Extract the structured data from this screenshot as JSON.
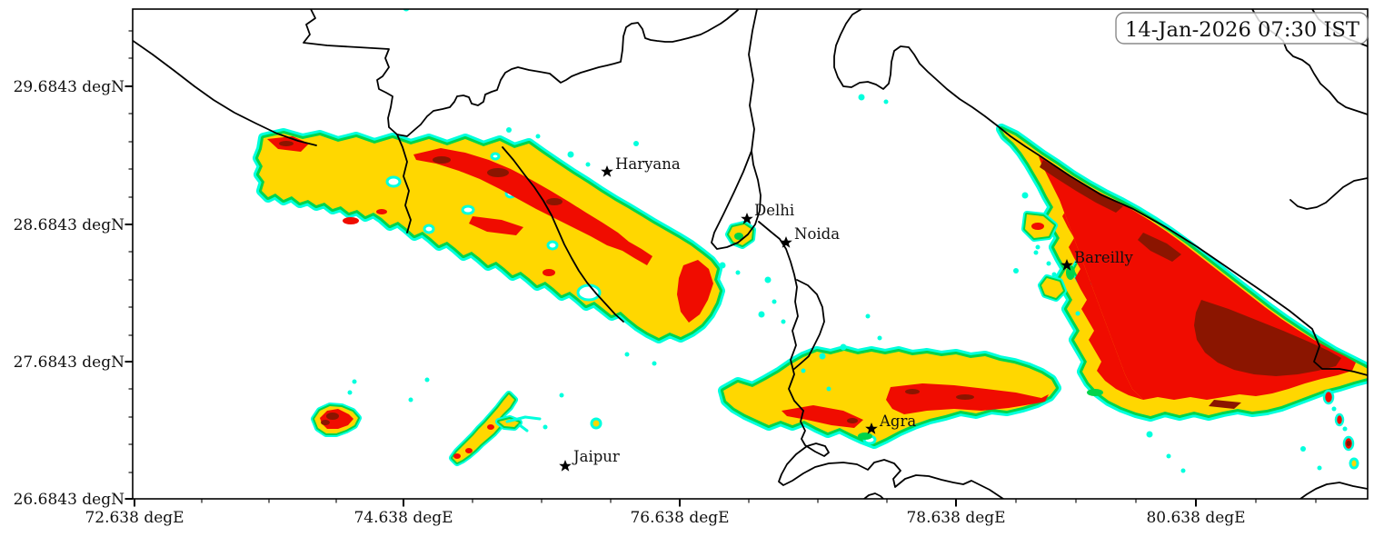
{
  "timestamp_box": {
    "text": "14-Jan-2026 07:30 IST"
  },
  "axes": {
    "y_labels": [
      "29.6843 degN",
      "28.6843 degN",
      "27.6843 degN",
      "26.6843 degN"
    ],
    "x_labels": [
      "72.638 degE",
      "74.638 degE",
      "76.638 degE",
      "78.638 degE",
      "80.638 degE"
    ]
  },
  "cities": [
    {
      "label": "Haryana"
    },
    {
      "label": "Delhi"
    },
    {
      "label": "Noida"
    },
    {
      "label": "Bareilly"
    },
    {
      "label": "Agra"
    },
    {
      "label": "Jaipur"
    }
  ],
  "colors": {
    "fog1": "#00FFDD",
    "fog2": "#00D44B",
    "fog3": "#FFD700",
    "fog4": "#F00C00",
    "fog5": "#8B1500",
    "boundary": "#000000",
    "background": "#FFFFFF"
  }
}
